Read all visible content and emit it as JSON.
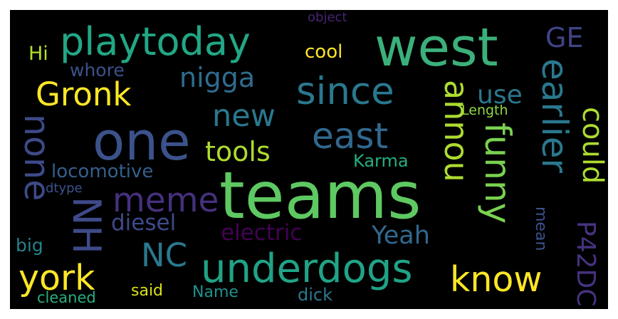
{
  "words": [
    {
      "text": "teams",
      "color": "#5ec962",
      "vertical": false
    },
    {
      "text": "west",
      "color": "#3bb07a",
      "vertical": false
    },
    {
      "text": "one",
      "color": "#3b528b",
      "vertical": false
    },
    {
      "text": "playtoday",
      "color": "#22a785",
      "vertical": false
    },
    {
      "text": "since",
      "color": "#2a788e",
      "vertical": false
    },
    {
      "text": "underdogs",
      "color": "#20a386",
      "vertical": false
    },
    {
      "text": "Gronk",
      "color": "#fde725",
      "vertical": false
    },
    {
      "text": "york",
      "color": "#fde725",
      "vertical": false
    },
    {
      "text": "know",
      "color": "#fde725",
      "vertical": false
    },
    {
      "text": "east",
      "color": "#31688e",
      "vertical": false
    },
    {
      "text": "new",
      "color": "#2a788e",
      "vertical": false
    },
    {
      "text": "meme",
      "color": "#46307e",
      "vertical": false
    },
    {
      "text": "NC",
      "color": "#2a788e",
      "vertical": false
    },
    {
      "text": "nigga",
      "color": "#2f6c8e",
      "vertical": false
    },
    {
      "text": "tools",
      "color": "#addc30",
      "vertical": false
    },
    {
      "text": "diesel",
      "color": "#3e4a89",
      "vertical": false
    },
    {
      "text": "electric",
      "color": "#440154",
      "vertical": false
    },
    {
      "text": "Yeah",
      "color": "#31688e",
      "vertical": false
    },
    {
      "text": "locomotive",
      "color": "#355f8d",
      "vertical": false
    },
    {
      "text": "whore",
      "color": "#3b528b",
      "vertical": false
    },
    {
      "text": "cool",
      "color": "#fde725",
      "vertical": false
    },
    {
      "text": "use",
      "color": "#2a788e",
      "vertical": false
    },
    {
      "text": "Karma",
      "color": "#27ad81",
      "vertical": false
    },
    {
      "text": "Hi",
      "color": "#b5de2b",
      "vertical": false
    },
    {
      "text": "object",
      "color": "#482475",
      "vertical": false
    },
    {
      "text": "Length",
      "color": "#8fd744",
      "vertical": false
    },
    {
      "text": "dtype",
      "color": "#3b528b",
      "vertical": false
    },
    {
      "text": "big",
      "color": "#26828e",
      "vertical": false
    },
    {
      "text": "said",
      "color": "#d8e219",
      "vertical": false
    },
    {
      "text": "Name",
      "color": "#21918c",
      "vertical": false
    },
    {
      "text": "dick",
      "color": "#2a788e",
      "vertical": false
    },
    {
      "text": "cleaned",
      "color": "#27ad81",
      "vertical": false
    },
    {
      "text": "GE",
      "color": "#414487",
      "vertical": false
    },
    {
      "text": "none",
      "color": "#3e4a89",
      "vertical": true
    },
    {
      "text": "NH",
      "color": "#3e4a89",
      "vertical": true
    },
    {
      "text": "annou",
      "color": "#addc30",
      "vertical": true
    },
    {
      "text": "funny",
      "color": "#7ad151",
      "vertical": true
    },
    {
      "text": "earlier",
      "color": "#2a788e",
      "vertical": true
    },
    {
      "text": "could",
      "color": "#addc30",
      "vertical": true
    },
    {
      "text": "mean",
      "color": "#3b528b",
      "vertical": true
    },
    {
      "text": "P42DC",
      "color": "#46327e",
      "vertical": true
    }
  ]
}
